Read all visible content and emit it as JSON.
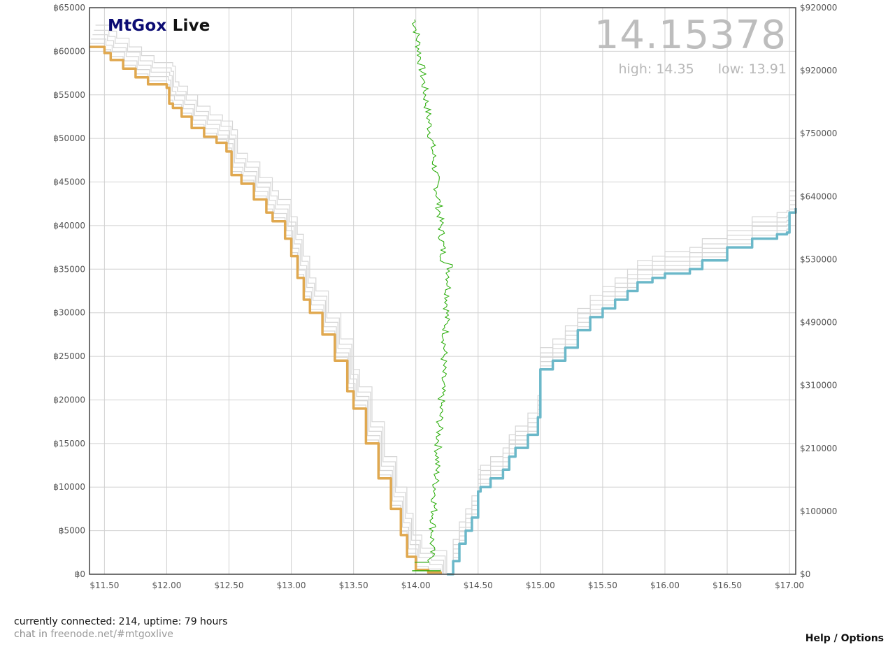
{
  "header": {
    "title_part1": "MtGox",
    "title_part2": "Live",
    "last_price": "14.15378",
    "high_label": "high: 14.35",
    "low_label": "low: 13.91"
  },
  "footer": {
    "status": "currently connected: 214, uptime: 79 hours",
    "chat_prefix": "chat in",
    "chat_link": "freenode.net/#mtgoxlive",
    "help_link": "Help / Options"
  },
  "colors": {
    "bids": "#e0a84f",
    "asks": "#6bb8c9",
    "history": "#d6d6d6",
    "trades": "#22aa00",
    "grid": "#d0d0d0",
    "frame": "#444444"
  },
  "chart_data": {
    "type": "line",
    "xlim": [
      11.38,
      17.05
    ],
    "x_ticks": [
      "$11.50",
      "$12.00",
      "$12.50",
      "$13.00",
      "$13.50",
      "$14.00",
      "$14.50",
      "$15.00",
      "$15.50",
      "$16.00",
      "$16.50",
      "$17.00"
    ],
    "x_tick_values": [
      11.5,
      12.0,
      12.5,
      13.0,
      13.5,
      14.0,
      14.5,
      15.0,
      15.5,
      16.0,
      16.5,
      17.0
    ],
    "ylim_left": [
      0,
      65000
    ],
    "y_ticks_left": [
      "฿0",
      "฿5000",
      "฿10000",
      "฿15000",
      "฿20000",
      "฿25000",
      "฿30000",
      "฿35000",
      "฿40000",
      "฿45000",
      "฿50000",
      "฿55000",
      "฿60000",
      "฿65000"
    ],
    "y_ticks_right": [
      "$0",
      "$100000",
      "$210000",
      "$310000",
      "$490000",
      "$530000",
      "$640000",
      "$750000",
      "$920000",
      "$920000"
    ],
    "series": [
      {
        "kind": "bids",
        "x": [
          11.38,
          11.5,
          11.55,
          11.65,
          11.75,
          11.85,
          12.0,
          12.02,
          12.05,
          12.12,
          12.2,
          12.3,
          12.4,
          12.48,
          12.52,
          12.6,
          12.7,
          12.8,
          12.85,
          12.95,
          13.0,
          13.05,
          13.1,
          13.15,
          13.25,
          13.35,
          13.45,
          13.5,
          13.6,
          13.7,
          13.8,
          13.88,
          13.93,
          14.0,
          14.1,
          14.2
        ],
        "y": [
          60500,
          59800,
          59000,
          58000,
          57000,
          56200,
          55800,
          54000,
          53500,
          52500,
          51200,
          50200,
          49500,
          48500,
          45800,
          44800,
          43000,
          41500,
          40500,
          38500,
          36500,
          34000,
          31500,
          30000,
          27500,
          24500,
          21000,
          19000,
          15000,
          11000,
          7500,
          4500,
          2000,
          500,
          200,
          0
        ]
      },
      {
        "kind": "asks",
        "x": [
          14.25,
          14.3,
          14.35,
          14.4,
          14.45,
          14.5,
          14.52,
          14.6,
          14.7,
          14.75,
          14.8,
          14.9,
          14.98,
          15.0,
          15.1,
          15.2,
          15.3,
          15.4,
          15.5,
          15.6,
          15.7,
          15.78,
          15.9,
          16.0,
          16.2,
          16.3,
          16.5,
          16.7,
          16.9,
          16.98,
          17.0,
          17.05
        ],
        "y": [
          0,
          1500,
          3500,
          5000,
          6500,
          9500,
          10000,
          11000,
          12000,
          13500,
          14500,
          16000,
          18000,
          23500,
          24500,
          26000,
          28000,
          29500,
          30500,
          31500,
          32500,
          33500,
          34000,
          34500,
          35000,
          36000,
          37500,
          38500,
          39000,
          39200,
          41500,
          42000
        ]
      }
    ],
    "history_offsets": [
      400,
      900,
      1400,
      1900,
      2500
    ],
    "trades_description_x_range": [
      13.98,
      14.35
    ]
  }
}
